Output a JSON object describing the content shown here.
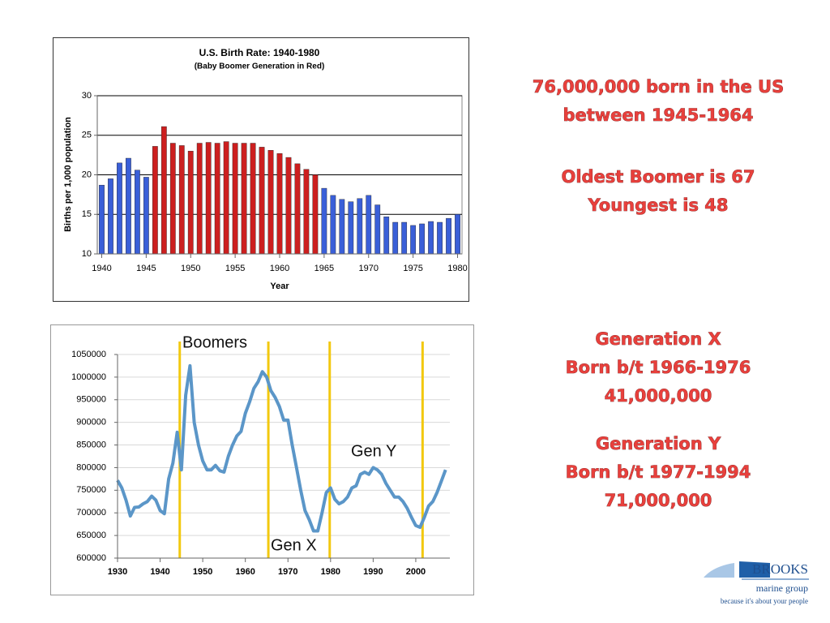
{
  "chart_data": [
    {
      "type": "bar",
      "title": "U.S. Birth Rate: 1940-1980",
      "subtitle": "(Baby Boomer Generation in Red)",
      "ylabel": "Births per 1,000 population",
      "xlabel": "Year",
      "x": [
        1940,
        1941,
        1942,
        1943,
        1944,
        1945,
        1946,
        1947,
        1948,
        1949,
        1950,
        1951,
        1952,
        1953,
        1954,
        1955,
        1956,
        1957,
        1958,
        1959,
        1960,
        1961,
        1962,
        1963,
        1964,
        1965,
        1966,
        1967,
        1968,
        1969,
        1970,
        1971,
        1972,
        1973,
        1974,
        1975,
        1976,
        1977,
        1978,
        1979,
        1980
      ],
      "values": [
        18.7,
        19.5,
        21.5,
        22.1,
        20.6,
        19.7,
        23.6,
        26.1,
        24.0,
        23.7,
        23.0,
        24.0,
        24.1,
        24.0,
        24.2,
        24.0,
        24.0,
        24.0,
        23.5,
        23.1,
        22.7,
        22.2,
        21.4,
        20.7,
        20.0,
        18.3,
        17.4,
        16.9,
        16.6,
        17.0,
        17.4,
        16.2,
        14.7,
        14.0,
        14.0,
        13.6,
        13.8,
        14.1,
        14.0,
        14.5,
        15.0
      ],
      "colors": [
        "#3a5fd8",
        "#3a5fd8",
        "#3a5fd8",
        "#3a5fd8",
        "#3a5fd8",
        "#3a5fd8",
        "#cc1f1f",
        "#cc1f1f",
        "#cc1f1f",
        "#cc1f1f",
        "#cc1f1f",
        "#cc1f1f",
        "#cc1f1f",
        "#cc1f1f",
        "#cc1f1f",
        "#cc1f1f",
        "#cc1f1f",
        "#cc1f1f",
        "#cc1f1f",
        "#cc1f1f",
        "#cc1f1f",
        "#cc1f1f",
        "#cc1f1f",
        "#cc1f1f",
        "#cc1f1f",
        "#3a5fd8",
        "#3a5fd8",
        "#3a5fd8",
        "#3a5fd8",
        "#3a5fd8",
        "#3a5fd8",
        "#3a5fd8",
        "#3a5fd8",
        "#3a5fd8",
        "#3a5fd8",
        "#3a5fd8",
        "#3a5fd8",
        "#3a5fd8",
        "#3a5fd8",
        "#3a5fd8",
        "#3a5fd8"
      ],
      "xlim": [
        1939.5,
        1980.5
      ],
      "xticks": [
        1940,
        1945,
        1950,
        1955,
        1960,
        1965,
        1970,
        1975,
        1980
      ],
      "ylim": [
        10,
        30
      ],
      "yticks": [
        10,
        15,
        20,
        25,
        30
      ],
      "grid": true
    },
    {
      "type": "line",
      "color": "#5b96c8",
      "vline_color": "#f2c80f",
      "x": [
        1930,
        1931,
        1932,
        1933,
        1934,
        1935,
        1936,
        1937,
        1938,
        1939,
        1940,
        1941,
        1942,
        1943,
        1944,
        1945,
        1946,
        1947,
        1948,
        1949,
        1950,
        1951,
        1952,
        1953,
        1954,
        1955,
        1956,
        1957,
        1958,
        1959,
        1960,
        1961,
        1962,
        1963,
        1964,
        1965,
        1966,
        1967,
        1968,
        1969,
        1970,
        1971,
        1972,
        1973,
        1974,
        1975,
        1976,
        1977,
        1978,
        1979,
        1980,
        1981,
        1982,
        1983,
        1984,
        1985,
        1986,
        1987,
        1988,
        1989,
        1990,
        1991,
        1992,
        1993,
        1994,
        1995,
        1996,
        1997,
        1998,
        1999,
        2000,
        2001,
        2002,
        2003,
        2004,
        2005,
        2006,
        2007
      ],
      "values": [
        772000,
        755000,
        728000,
        693000,
        712000,
        713000,
        720000,
        725000,
        737000,
        728000,
        705000,
        698000,
        775000,
        810000,
        878000,
        795000,
        960000,
        1025000,
        900000,
        850000,
        815000,
        795000,
        795000,
        805000,
        793000,
        790000,
        825000,
        850000,
        870000,
        880000,
        920000,
        945000,
        975000,
        990000,
        1012000,
        1000000,
        970000,
        955000,
        935000,
        905000,
        905000,
        850000,
        800000,
        750000,
        705000,
        685000,
        660000,
        660000,
        700000,
        745000,
        755000,
        730000,
        720000,
        725000,
        735000,
        755000,
        760000,
        785000,
        790000,
        785000,
        800000,
        795000,
        785000,
        765000,
        750000,
        735000,
        735000,
        725000,
        710000,
        690000,
        672000,
        668000,
        690000,
        715000,
        725000,
        745000,
        770000,
        795000
      ],
      "vlines": [
        1944.6,
        1965.4,
        1979.8,
        2001.6
      ],
      "annotations": [
        "Boomers",
        "Gen Y",
        "Gen X"
      ],
      "xlim": [
        1930,
        2008
      ],
      "xticks": [
        1930,
        1940,
        1950,
        1960,
        1970,
        1980,
        1990,
        2000
      ],
      "ylim": [
        600000,
        1050000
      ],
      "yticks": [
        600000,
        650000,
        700000,
        750000,
        800000,
        850000,
        900000,
        950000,
        1000000,
        1050000
      ],
      "grid": true
    }
  ],
  "slide_text": {
    "blocks": [
      [
        "76,000,000 born in the US",
        "between 1945-1964"
      ],
      [
        "Oldest Boomer is 67",
        "Youngest is 48"
      ],
      [
        "Generation X",
        "Born b/t 1966-1976",
        "41,000,000"
      ],
      [
        "Generation Y",
        "Born b/t 1977-1994",
        "71,000,000"
      ]
    ]
  },
  "logo": {
    "name": "BROOKS",
    "sub": "marine group",
    "tagline": "because it's about your people"
  }
}
